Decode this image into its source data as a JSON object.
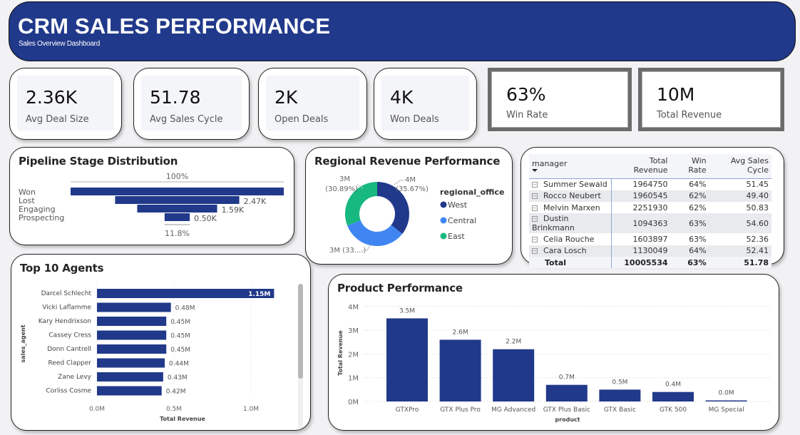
{
  "header": {
    "title": "CRM SALES PERFORMANCE",
    "subtitle": "Sales Overview Dashboard",
    "color": "#21398a"
  },
  "kpis": [
    {
      "value": "2.36K",
      "label": "Avg Deal Size"
    },
    {
      "value": "51.78",
      "label": "Avg Sales Cycle"
    },
    {
      "value": "2K",
      "label": "Open Deals"
    },
    {
      "value": "4K",
      "label": "Won Deals"
    },
    {
      "value": "63%",
      "label": "Win Rate"
    },
    {
      "value": "10M",
      "label": "Total Revenue"
    }
  ],
  "pipeline": {
    "title": "Pipeline Stage Distribution",
    "top_label": "100%",
    "bottom_label": "11.8%"
  },
  "regional": {
    "title": "Regional Revenue Performance",
    "legend_title": "regional_office"
  },
  "table": {
    "columns": [
      "manager",
      "Total Revenue",
      "Win Rate",
      "Avg Sales Cycle"
    ],
    "rows": [
      [
        "Summer Sewald",
        "1964750",
        "64%",
        "51.45"
      ],
      [
        "Rocco Neubert",
        "1960545",
        "62%",
        "49.40"
      ],
      [
        "Melvin Marxen",
        "2251930",
        "62%",
        "50.83"
      ],
      [
        "Dustin Brinkmann",
        "1094363",
        "63%",
        "54.60"
      ],
      [
        "Celia Rouche",
        "1603897",
        "63%",
        "52.36"
      ],
      [
        "Cara Losch",
        "1130049",
        "64%",
        "52.41"
      ]
    ],
    "total": [
      "Total",
      "10005534",
      "63%",
      "51.78"
    ]
  },
  "agents": {
    "title": "Top 10 Agents"
  },
  "products": {
    "title": "Product Performance"
  },
  "chart_data": [
    {
      "type": "funnel",
      "title": "Pipeline Stage Distribution",
      "categories": [
        "Won",
        "Lost",
        "Engaging",
        "Prospecting"
      ],
      "values": [
        4240,
        2470,
        1590,
        500
      ],
      "data_labels": [
        "",
        "2.47K",
        "1.59K",
        "0.50K"
      ],
      "color": "#21398a"
    },
    {
      "type": "pie",
      "title": "Regional Revenue Performance",
      "legend_title": "regional_office",
      "legend": "right",
      "categories": [
        "West",
        "Central",
        "East"
      ],
      "values": [
        35.67,
        33.44,
        30.89
      ],
      "data_labels": [
        "4M (35.67%)",
        "3M (33....)",
        "3M (30.89%)"
      ],
      "colors": [
        "#21398a",
        "#3f86f2",
        "#17b97f"
      ]
    },
    {
      "type": "bar",
      "orientation": "horizontal",
      "title": "Top 10 Agents",
      "xlabel": "Total Revenue",
      "ylabel": "sales_agent",
      "categories": [
        "Darcel Schlecht",
        "Vicki Laflamme",
        "Kary Hendrixson",
        "Cassey Cress",
        "Donn Cantrell",
        "Reed Clapper",
        "Zane Levy",
        "Corliss Cosme"
      ],
      "values": [
        1.15,
        0.48,
        0.45,
        0.45,
        0.45,
        0.44,
        0.43,
        0.42
      ],
      "data_labels": [
        "1.15M",
        "0.48M",
        "0.45M",
        "0.45M",
        "0.45M",
        "0.44M",
        "0.43M",
        "0.42M"
      ],
      "xticks": [
        "0.0M",
        "0.5M",
        "1.0M"
      ],
      "xlim": [
        0,
        1.2
      ],
      "grid": true,
      "color": "#21398a"
    },
    {
      "type": "bar",
      "title": "Product Performance",
      "xlabel": "product",
      "ylabel": "Total Revenue",
      "categories": [
        "GTXPro",
        "GTX Plus Pro",
        "MG Advanced",
        "GTX Plus Basic",
        "GTX Basic",
        "GTK 500",
        "MG Special"
      ],
      "values": [
        3.5,
        2.6,
        2.2,
        0.7,
        0.5,
        0.4,
        0.04
      ],
      "data_labels": [
        "3.5M",
        "2.6M",
        "2.2M",
        "0.7M",
        "0.5M",
        "0.4M",
        "0.0M"
      ],
      "yticks": [
        "0M",
        "1M",
        "2M",
        "3M",
        "4M"
      ],
      "ylim": [
        0,
        4
      ],
      "grid": true,
      "color": "#21398a"
    }
  ]
}
